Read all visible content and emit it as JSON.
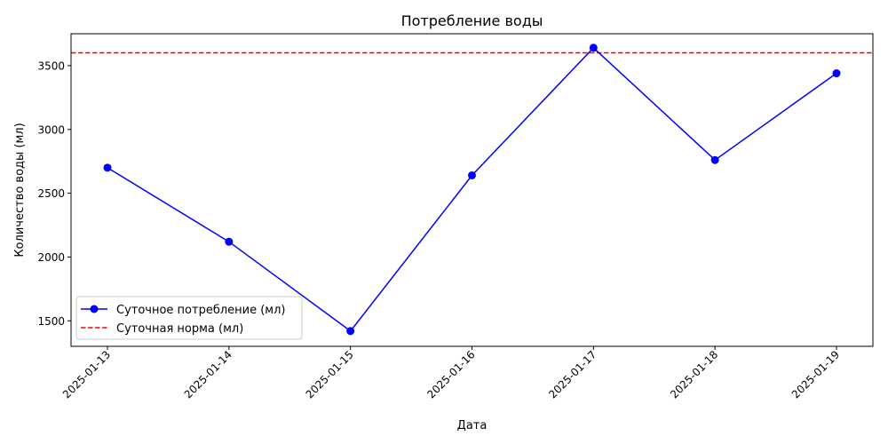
{
  "chart_data": {
    "type": "line",
    "title": "Потребление воды",
    "xlabel": "Дата",
    "ylabel": "Количество воды (мл)",
    "x": [
      "2025-01-13",
      "2025-01-14",
      "2025-01-15",
      "2025-01-16",
      "2025-01-17",
      "2025-01-18",
      "2025-01-19"
    ],
    "series": [
      {
        "name": "Суточное потребление (мл)",
        "values": [
          2700,
          2120,
          1420,
          2640,
          3640,
          2760,
          3440
        ],
        "color": "#0000ff",
        "marker": "circle",
        "line_style": "solid"
      }
    ],
    "reference_lines": [
      {
        "name": "Суточная норма (мл)",
        "y": 3600,
        "color": "#ff0000",
        "line_style": "dashed"
      }
    ],
    "ylim": [
      1300,
      3750
    ],
    "yticks": [
      1500,
      2000,
      2500,
      3000,
      3500
    ],
    "grid": false,
    "legend_position": "lower-left"
  }
}
